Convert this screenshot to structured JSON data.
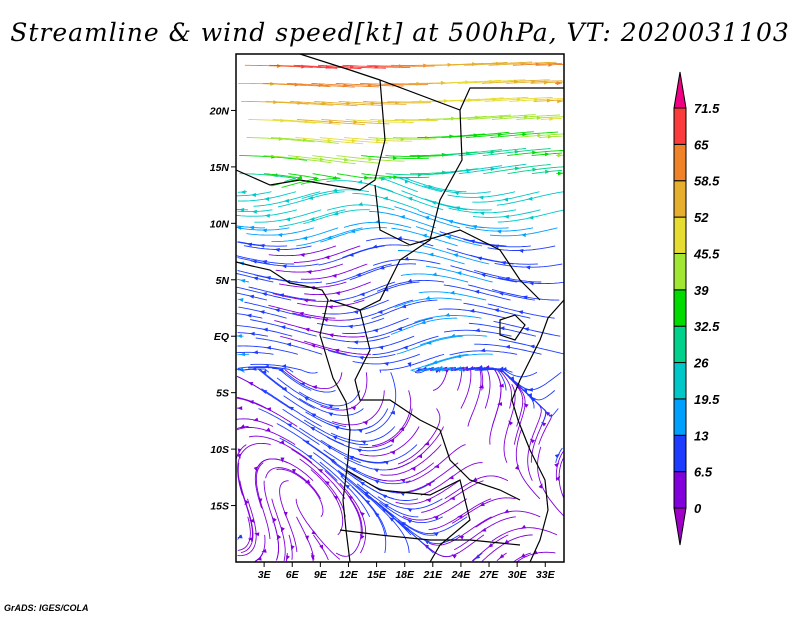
{
  "title": "Streamline & wind speed[kt] at 500hPa, VT: 2020031103",
  "footer": "GrADS: IGES/COLA",
  "chart_data": {
    "type": "streamline",
    "title": "Streamline & wind speed[kt] at 500hPa, VT: 2020031103",
    "variable": "wind speed",
    "units": "kt",
    "level": "500hPa",
    "valid_time": "2020031103",
    "lon_range": [
      0,
      35
    ],
    "lat_range": [
      -20,
      25
    ],
    "x_ticks": [
      {
        "value": 3,
        "label": "3E"
      },
      {
        "value": 6,
        "label": "6E"
      },
      {
        "value": 9,
        "label": "9E"
      },
      {
        "value": 12,
        "label": "12E"
      },
      {
        "value": 15,
        "label": "15E"
      },
      {
        "value": 18,
        "label": "18E"
      },
      {
        "value": 21,
        "label": "21E"
      },
      {
        "value": 24,
        "label": "24E"
      },
      {
        "value": 27,
        "label": "27E"
      },
      {
        "value": 30,
        "label": "30E"
      },
      {
        "value": 33,
        "label": "33E"
      }
    ],
    "y_ticks": [
      {
        "value": 20,
        "label": "20N"
      },
      {
        "value": 15,
        "label": "15N"
      },
      {
        "value": 10,
        "label": "10N"
      },
      {
        "value": 5,
        "label": "5N"
      },
      {
        "value": 0,
        "label": "EQ"
      },
      {
        "value": -5,
        "label": "5S"
      },
      {
        "value": -10,
        "label": "10S"
      },
      {
        "value": -15,
        "label": "15S"
      }
    ],
    "colorbar": {
      "levels": [
        "0",
        "6.5",
        "13",
        "19.5",
        "26",
        "32.5",
        "39",
        "45.5",
        "52",
        "58.5",
        "65",
        "71.5"
      ],
      "level_values": [
        0,
        6.5,
        13,
        19.5,
        26,
        32.5,
        39,
        45.5,
        52,
        58.5,
        65,
        71.5
      ],
      "colors": [
        "#a000c8",
        "#8200dc",
        "#1e3cff",
        "#00a0ff",
        "#00c8c8",
        "#00d28c",
        "#00dc00",
        "#a0e632",
        "#e6dc32",
        "#e6af2d",
        "#f08228",
        "#fa3c3c",
        "#f00082"
      ]
    },
    "regions": [
      {
        "area": "north of 15N",
        "speed_range": [
          32.5,
          65
        ]
      },
      {
        "area": "10N-15N",
        "speed_range": [
          19.5,
          32.5
        ]
      },
      {
        "area": "equatorial",
        "speed_range": [
          6.5,
          19.5
        ]
      },
      {
        "area": "southern Africa",
        "speed_range": [
          0,
          13
        ]
      }
    ]
  }
}
